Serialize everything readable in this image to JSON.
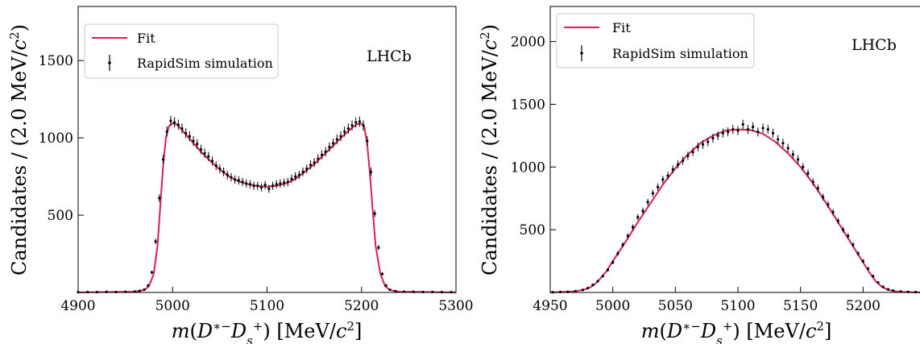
{
  "colors": {
    "fit": "#d6204d",
    "data": "#000000"
  },
  "chart_data": [
    {
      "type": "scatter",
      "xlabel": "m(D*− Ds+) [MeV/c²]",
      "ylabel": "Candidates / (2.0 MeV/c²)",
      "xlim": [
        4900,
        5300
      ],
      "ylim": [
        0,
        1850
      ],
      "xticks": [
        "4900",
        "5000",
        "5100",
        "5200",
        "5300"
      ],
      "yticks": [
        "500",
        "1000",
        "1500"
      ],
      "legend_position": "top-left",
      "annotation": "LHCb",
      "series": [
        {
          "name": "Fit",
          "kind": "line",
          "x": [
            4900,
            4960,
            4970,
            4975,
            4980,
            4984,
            4987,
            4990,
            4993,
            4996,
            5000,
            5005,
            5010,
            5020,
            5030,
            5040,
            5050,
            5060,
            5070,
            5080,
            5090,
            5100,
            5110,
            5120,
            5130,
            5140,
            5150,
            5160,
            5170,
            5180,
            5190,
            5195,
            5200,
            5203,
            5206,
            5209,
            5212,
            5215,
            5220,
            5225,
            5230,
            5240,
            5300
          ],
          "y": [
            0,
            5,
            15,
            40,
            120,
            300,
            560,
            820,
            1000,
            1075,
            1095,
            1085,
            1050,
            980,
            910,
            850,
            795,
            750,
            718,
            700,
            688,
            683,
            690,
            705,
            735,
            780,
            830,
            890,
            950,
            1010,
            1065,
            1088,
            1092,
            1070,
            960,
            760,
            520,
            300,
            120,
            40,
            15,
            5,
            0
          ]
        },
        {
          "name": "RapidSim simulation",
          "kind": "points",
          "x": [
            4900,
            4910,
            4920,
            4930,
            4940,
            4950,
            4960,
            4965,
            4970,
            4974,
            4978,
            4982,
            4986,
            4990,
            4994,
            4998,
            5002,
            5006,
            5010,
            5014,
            5018,
            5022,
            5026,
            5030,
            5034,
            5038,
            5042,
            5046,
            5050,
            5054,
            5058,
            5062,
            5066,
            5070,
            5074,
            5078,
            5082,
            5086,
            5090,
            5094,
            5098,
            5102,
            5106,
            5110,
            5114,
            5118,
            5122,
            5126,
            5130,
            5134,
            5138,
            5142,
            5146,
            5150,
            5154,
            5158,
            5162,
            5166,
            5170,
            5174,
            5178,
            5182,
            5186,
            5190,
            5194,
            5198,
            5202,
            5206,
            5210,
            5214,
            5218,
            5222,
            5226,
            5230,
            5236,
            5245,
            5255,
            5265,
            5275,
            5285,
            5295
          ],
          "y": [
            2,
            3,
            2,
            4,
            3,
            4,
            6,
            10,
            18,
            45,
            130,
            330,
            610,
            860,
            1040,
            1110,
            1100,
            1085,
            1060,
            1030,
            1010,
            980,
            960,
            925,
            900,
            880,
            850,
            820,
            800,
            780,
            760,
            745,
            730,
            725,
            715,
            705,
            700,
            690,
            690,
            680,
            695,
            670,
            690,
            700,
            705,
            710,
            715,
            735,
            750,
            760,
            780,
            800,
            825,
            840,
            865,
            890,
            910,
            940,
            965,
            990,
            1010,
            1040,
            1060,
            1080,
            1100,
            1105,
            1080,
            980,
            780,
            510,
            290,
            120,
            45,
            18,
            8,
            5,
            4,
            3,
            3,
            2,
            2
          ]
        }
      ]
    },
    {
      "type": "scatter",
      "xlabel": "m(D*− Ds+) [MeV/c²]",
      "ylabel": "Candidates / (2.0 MeV/c²)",
      "xlim": [
        4950,
        5250
      ],
      "ylim": [
        0,
        2280
      ],
      "xticks": [
        "4950",
        "5000",
        "5050",
        "5100",
        "5150",
        "5200"
      ],
      "yticks": [
        "500",
        "1000",
        "1500",
        "2000"
      ],
      "legend_position": "top-left",
      "annotation": "LHCb",
      "series": [
        {
          "name": "Fit",
          "kind": "line",
          "x": [
            4950,
            4970,
            4980,
            4985,
            4990,
            4995,
            5000,
            5010,
            5020,
            5030,
            5040,
            5050,
            5060,
            5070,
            5080,
            5090,
            5100,
            5110,
            5120,
            5130,
            5140,
            5150,
            5160,
            5170,
            5180,
            5190,
            5200,
            5205,
            5210,
            5215,
            5220,
            5225,
            5230,
            5240,
            5250
          ],
          "y": [
            0,
            8,
            30,
            60,
            110,
            170,
            250,
            400,
            560,
            710,
            860,
            990,
            1100,
            1190,
            1250,
            1290,
            1300,
            1295,
            1265,
            1200,
            1110,
            1000,
            870,
            720,
            560,
            400,
            240,
            160,
            90,
            45,
            20,
            10,
            5,
            2,
            0
          ]
        },
        {
          "name": "RapidSim simulation",
          "kind": "points",
          "x": [
            4952,
            4958,
            4964,
            4970,
            4976,
            4980,
            4984,
            4988,
            4992,
            4996,
            5000,
            5004,
            5008,
            5012,
            5016,
            5020,
            5024,
            5028,
            5032,
            5036,
            5040,
            5044,
            5048,
            5052,
            5056,
            5060,
            5064,
            5068,
            5072,
            5076,
            5080,
            5084,
            5088,
            5092,
            5096,
            5100,
            5104,
            5108,
            5112,
            5116,
            5120,
            5124,
            5128,
            5132,
            5136,
            5140,
            5144,
            5148,
            5152,
            5156,
            5160,
            5164,
            5168,
            5172,
            5176,
            5180,
            5184,
            5188,
            5192,
            5196,
            5200,
            5204,
            5208,
            5212,
            5216,
            5220,
            5224,
            5230,
            5236,
            5242,
            5248
          ],
          "y": [
            2,
            4,
            5,
            10,
            20,
            35,
            60,
            90,
            130,
            180,
            240,
            310,
            380,
            450,
            520,
            600,
            650,
            720,
            790,
            840,
            900,
            930,
            980,
            1020,
            1050,
            1090,
            1120,
            1160,
            1180,
            1200,
            1230,
            1250,
            1270,
            1280,
            1300,
            1290,
            1340,
            1300,
            1320,
            1280,
            1310,
            1300,
            1270,
            1220,
            1190,
            1150,
            1100,
            1060,
            1000,
            950,
            880,
            830,
            760,
            700,
            640,
            570,
            500,
            450,
            380,
            310,
            250,
            190,
            130,
            80,
            45,
            25,
            15,
            8,
            5,
            3,
            2
          ]
        }
      ]
    }
  ]
}
